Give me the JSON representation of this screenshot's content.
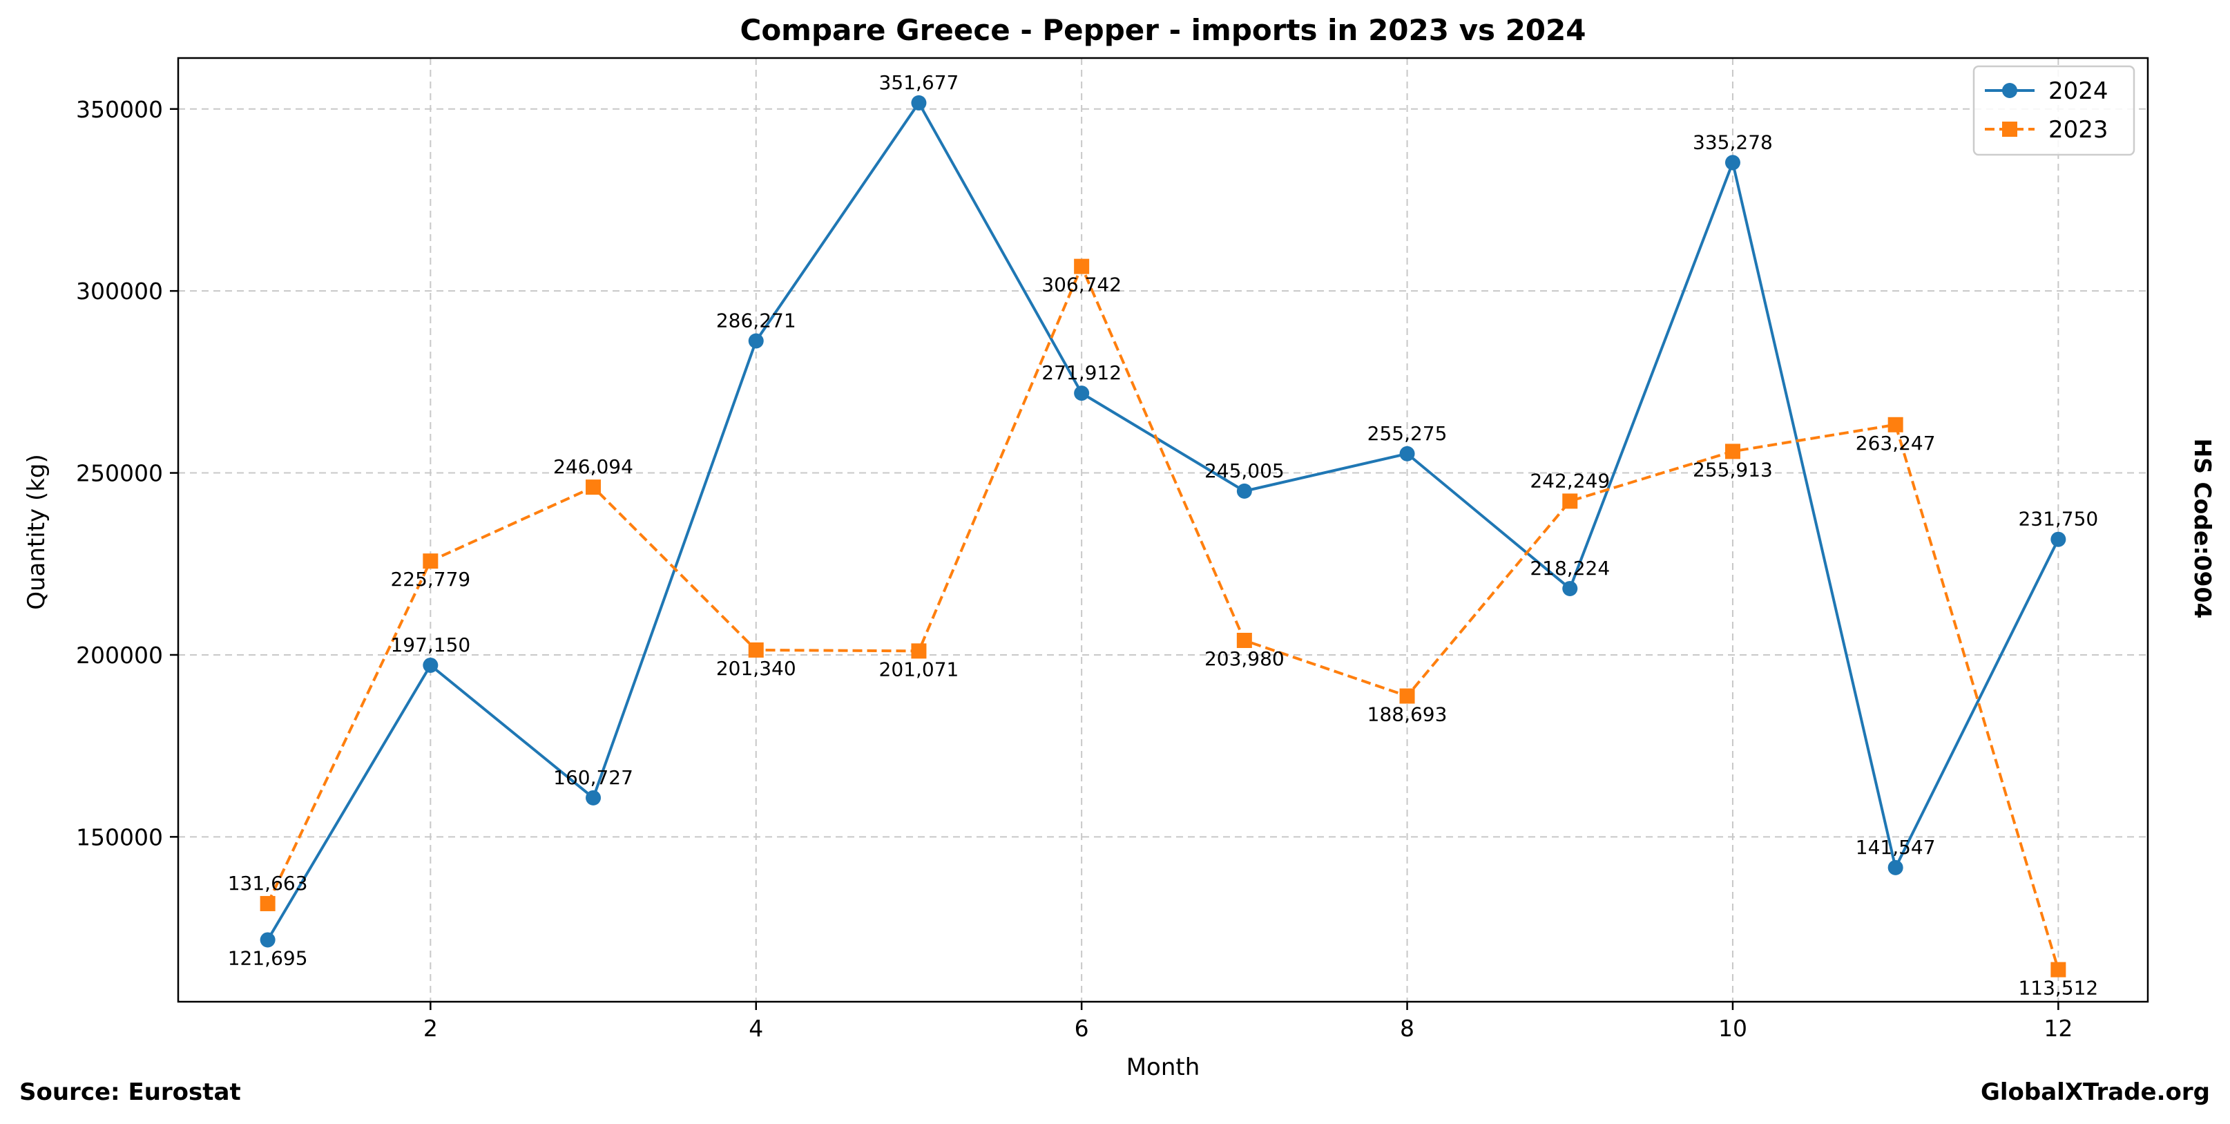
{
  "chart_data": {
    "type": "line",
    "title": "Compare Greece - Pepper - imports in 2023 vs 2024",
    "xlabel": "Month",
    "ylabel": "Quantity (kg)",
    "side_label": "HS Code:0904",
    "source": "Source: Eurostat",
    "watermark": "GlobalXTrade.org",
    "xlim": [
      0.45,
      12.55
    ],
    "ylim": [
      104700,
      364000
    ],
    "x_ticks": [
      2,
      4,
      6,
      8,
      10,
      12
    ],
    "y_ticks": [
      150000,
      200000,
      250000,
      300000,
      350000
    ],
    "grid": true,
    "legend_position": "top-right",
    "x": [
      1,
      2,
      3,
      4,
      5,
      6,
      7,
      8,
      9,
      10,
      11,
      12
    ],
    "series": [
      {
        "name": "2024",
        "color": "#1f77b4",
        "marker": "circle",
        "line_style": "solid",
        "values": [
          121695,
          197150,
          160727,
          286271,
          351677,
          271912,
          245005,
          255275,
          218224,
          335278,
          141547,
          231750
        ],
        "labels": [
          "121,695",
          "197,150",
          "160,727",
          "286,271",
          "351,677",
          "271,912",
          "245,005",
          "255,275",
          "218,224",
          "335,278",
          "141,547",
          "231,750"
        ]
      },
      {
        "name": "2023",
        "color": "#ff7f0e",
        "marker": "square",
        "line_style": "dashed",
        "values": [
          131663,
          225779,
          246094,
          201340,
          201071,
          306742,
          203980,
          188693,
          242249,
          255913,
          263247,
          113512
        ],
        "labels": [
          "131,663",
          "225,779",
          "246,094",
          "201,340",
          "201,071",
          "306,742",
          "203,980",
          "188,693",
          "242,249",
          "255,913",
          "263,247",
          "113,512"
        ]
      }
    ]
  }
}
